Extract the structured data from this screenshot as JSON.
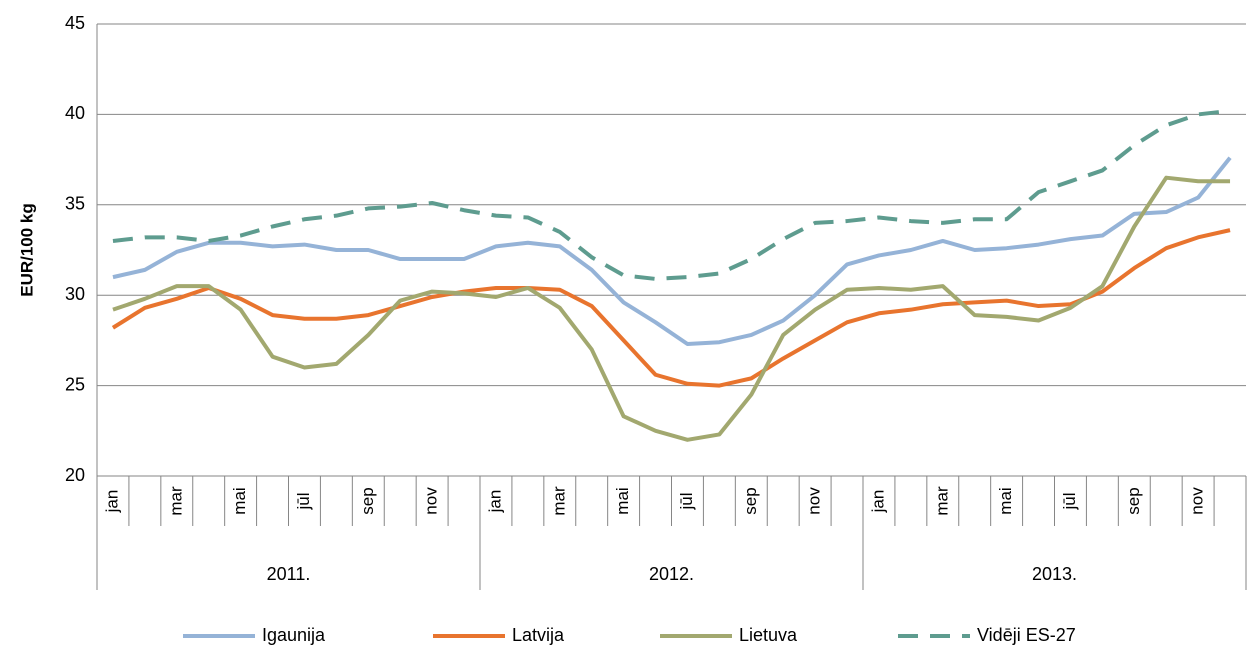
{
  "chart_data": {
    "type": "line",
    "y_label": "EUR/100 kg",
    "categories": [
      "jan",
      null,
      "mar",
      null,
      "mai",
      null,
      "jūl",
      null,
      "sep",
      null,
      "nov",
      null,
      "jan",
      null,
      "mar",
      null,
      "mai",
      null,
      "jūl",
      null,
      "sep",
      null,
      "nov",
      null,
      "jan",
      null,
      "mar",
      null,
      "mai",
      null,
      "jūl",
      null,
      "sep",
      null,
      "nov",
      null
    ],
    "years": [
      "2011.",
      "2012.",
      "2013."
    ],
    "ylim": [
      20,
      45
    ],
    "yticks": [
      20,
      25,
      30,
      35,
      40,
      45
    ],
    "grid": true,
    "legend": "bottom",
    "series": [
      {
        "name": "Igaunija",
        "color": "#95b3d7",
        "dash": false,
        "values": [
          31.0,
          31.4,
          32.4,
          32.9,
          32.9,
          32.7,
          32.8,
          32.5,
          32.5,
          32.0,
          32.0,
          32.0,
          32.7,
          32.9,
          32.7,
          31.4,
          29.6,
          28.5,
          27.3,
          27.4,
          27.8,
          28.6,
          30.0,
          31.7,
          32.2,
          32.5,
          33.0,
          32.5,
          32.6,
          32.8,
          33.1,
          33.3,
          34.5,
          34.6,
          35.4,
          37.6
        ]
      },
      {
        "name": "Latvija",
        "color": "#e8742e",
        "dash": false,
        "values": [
          28.2,
          29.3,
          29.8,
          30.4,
          29.8,
          28.9,
          28.7,
          28.7,
          28.9,
          29.4,
          29.9,
          30.2,
          30.4,
          30.4,
          30.3,
          29.4,
          27.5,
          25.6,
          25.1,
          25.0,
          25.4,
          26.5,
          27.5,
          28.5,
          29.0,
          29.2,
          29.5,
          29.6,
          29.7,
          29.4,
          29.5,
          30.2,
          31.5,
          32.6,
          33.2,
          33.6
        ]
      },
      {
        "name": "Lietuva",
        "color": "#a2a86f",
        "dash": false,
        "values": [
          29.2,
          29.8,
          30.5,
          30.5,
          29.2,
          26.6,
          26.0,
          26.2,
          27.8,
          29.7,
          30.2,
          30.1,
          29.9,
          30.4,
          29.3,
          27.0,
          23.3,
          22.5,
          22.0,
          22.3,
          24.5,
          27.8,
          29.2,
          30.3,
          30.4,
          30.3,
          30.5,
          28.9,
          28.8,
          28.6,
          29.3,
          30.5,
          33.8,
          36.5,
          36.3,
          36.3
        ]
      },
      {
        "name": "Vidēji ES-27",
        "color": "#5e9c8f",
        "dash": true,
        "values": [
          33.0,
          33.2,
          33.2,
          33.0,
          33.3,
          33.8,
          34.2,
          34.4,
          34.8,
          34.9,
          35.1,
          34.7,
          34.4,
          34.3,
          33.5,
          32.1,
          31.1,
          30.9,
          31.0,
          31.2,
          32.0,
          33.1,
          34.0,
          34.1,
          34.3,
          34.1,
          34.0,
          34.2,
          34.2,
          35.7,
          36.3,
          36.9,
          38.3,
          39.4,
          40.0,
          40.2
        ]
      }
    ]
  }
}
